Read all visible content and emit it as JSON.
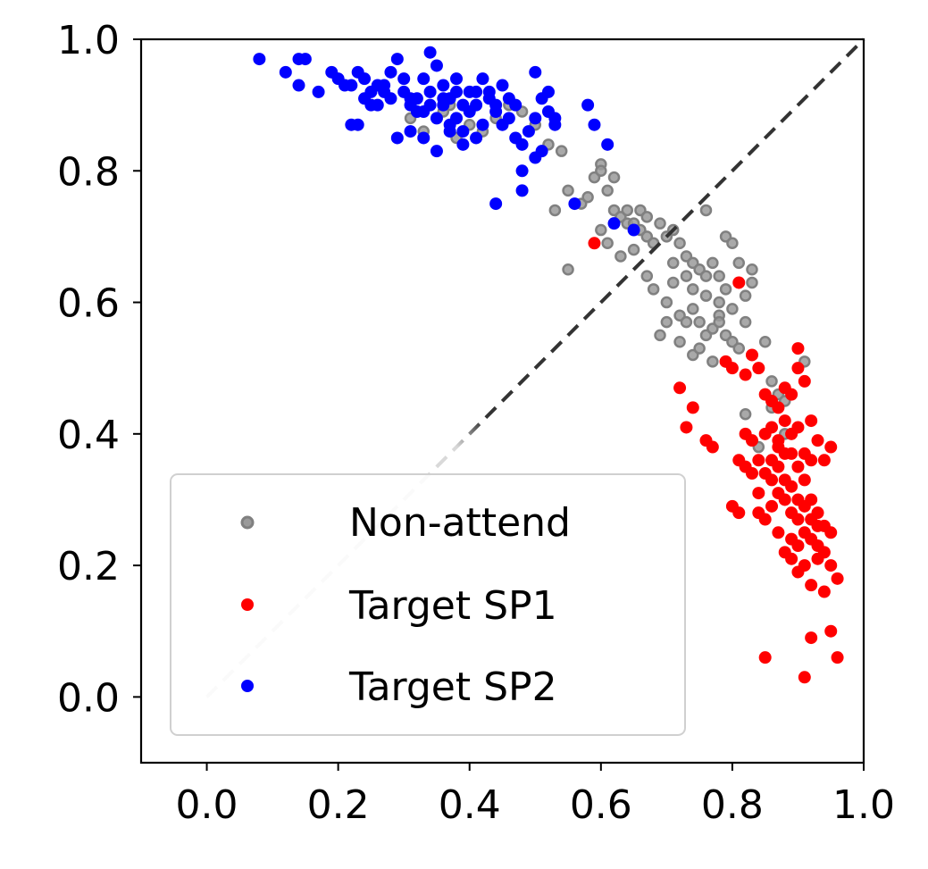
{
  "chart_data": {
    "type": "scatter",
    "title": "",
    "xlabel": "",
    "ylabel": "",
    "xlim": [
      -0.1,
      1.0
    ],
    "ylim": [
      -0.1,
      1.0
    ],
    "xticks": [
      "0.0",
      "0.2",
      "0.4",
      "0.6",
      "0.8",
      "1.0"
    ],
    "yticks": [
      "0.0",
      "0.2",
      "0.4",
      "0.6",
      "0.8",
      "1.0"
    ],
    "grid": false,
    "legend_position": "lower-left",
    "reference_line": {
      "style": "dashed",
      "from": [
        0,
        0
      ],
      "to": [
        1,
        1
      ],
      "color_start": "#d9d9d9",
      "color_end": "#333333"
    },
    "series": [
      {
        "name": "Non-attend",
        "color": "#808080",
        "points": [
          [
            0.31,
            0.88
          ],
          [
            0.33,
            0.86
          ],
          [
            0.36,
            0.89
          ],
          [
            0.38,
            0.85
          ],
          [
            0.4,
            0.87
          ],
          [
            0.42,
            0.86
          ],
          [
            0.44,
            0.88
          ],
          [
            0.46,
            0.9
          ],
          [
            0.48,
            0.89
          ],
          [
            0.5,
            0.87
          ],
          [
            0.52,
            0.84
          ],
          [
            0.54,
            0.83
          ],
          [
            0.37,
            0.9
          ],
          [
            0.34,
            0.92
          ],
          [
            0.53,
            0.74
          ],
          [
            0.55,
            0.77
          ],
          [
            0.57,
            0.75
          ],
          [
            0.58,
            0.76
          ],
          [
            0.59,
            0.79
          ],
          [
            0.6,
            0.81
          ],
          [
            0.6,
            0.8
          ],
          [
            0.61,
            0.77
          ],
          [
            0.62,
            0.79
          ],
          [
            0.62,
            0.74
          ],
          [
            0.63,
            0.73
          ],
          [
            0.64,
            0.72
          ],
          [
            0.64,
            0.74
          ],
          [
            0.65,
            0.72
          ],
          [
            0.66,
            0.71
          ],
          [
            0.67,
            0.7
          ],
          [
            0.68,
            0.69
          ],
          [
            0.69,
            0.72
          ],
          [
            0.7,
            0.7
          ],
          [
            0.71,
            0.71
          ],
          [
            0.72,
            0.69
          ],
          [
            0.73,
            0.67
          ],
          [
            0.74,
            0.66
          ],
          [
            0.75,
            0.65
          ],
          [
            0.76,
            0.64
          ],
          [
            0.76,
            0.74
          ],
          [
            0.77,
            0.66
          ],
          [
            0.78,
            0.64
          ],
          [
            0.79,
            0.7
          ],
          [
            0.8,
            0.69
          ],
          [
            0.81,
            0.66
          ],
          [
            0.83,
            0.65
          ],
          [
            0.55,
            0.65
          ],
          [
            0.6,
            0.71
          ],
          [
            0.61,
            0.69
          ],
          [
            0.63,
            0.67
          ],
          [
            0.65,
            0.68
          ],
          [
            0.67,
            0.64
          ],
          [
            0.68,
            0.62
          ],
          [
            0.7,
            0.6
          ],
          [
            0.71,
            0.63
          ],
          [
            0.72,
            0.58
          ],
          [
            0.73,
            0.57
          ],
          [
            0.74,
            0.59
          ],
          [
            0.75,
            0.57
          ],
          [
            0.76,
            0.55
          ],
          [
            0.77,
            0.56
          ],
          [
            0.78,
            0.58
          ],
          [
            0.79,
            0.55
          ],
          [
            0.8,
            0.54
          ],
          [
            0.81,
            0.53
          ],
          [
            0.82,
            0.57
          ],
          [
            0.83,
            0.52
          ],
          [
            0.84,
            0.5
          ],
          [
            0.85,
            0.54
          ],
          [
            0.86,
            0.48
          ],
          [
            0.87,
            0.46
          ],
          [
            0.88,
            0.45
          ],
          [
            0.82,
            0.43
          ],
          [
            0.84,
            0.38
          ],
          [
            0.69,
            0.55
          ],
          [
            0.7,
            0.57
          ],
          [
            0.72,
            0.54
          ],
          [
            0.74,
            0.52
          ],
          [
            0.75,
            0.53
          ],
          [
            0.77,
            0.51
          ],
          [
            0.78,
            0.6
          ],
          [
            0.79,
            0.62
          ],
          [
            0.8,
            0.59
          ],
          [
            0.82,
            0.61
          ],
          [
            0.83,
            0.63
          ],
          [
            0.76,
            0.61
          ],
          [
            0.78,
            0.57
          ],
          [
            0.74,
            0.62
          ],
          [
            0.73,
            0.64
          ],
          [
            0.91,
            0.51
          ],
          [
            0.86,
            0.44
          ],
          [
            0.88,
            0.4
          ],
          [
            0.71,
            0.66
          ],
          [
            0.66,
            0.74
          ],
          [
            0.67,
            0.73
          ]
        ]
      },
      {
        "name": "Target SP1",
        "color": "#ff0000",
        "points": [
          [
            0.59,
            0.69
          ],
          [
            0.81,
            0.63
          ],
          [
            0.72,
            0.47
          ],
          [
            0.74,
            0.44
          ],
          [
            0.73,
            0.41
          ],
          [
            0.76,
            0.39
          ],
          [
            0.77,
            0.38
          ],
          [
            0.79,
            0.51
          ],
          [
            0.8,
            0.5
          ],
          [
            0.82,
            0.49
          ],
          [
            0.83,
            0.52
          ],
          [
            0.84,
            0.5
          ],
          [
            0.85,
            0.46
          ],
          [
            0.86,
            0.45
          ],
          [
            0.87,
            0.44
          ],
          [
            0.88,
            0.47
          ],
          [
            0.89,
            0.46
          ],
          [
            0.9,
            0.53
          ],
          [
            0.9,
            0.5
          ],
          [
            0.91,
            0.48
          ],
          [
            0.92,
            0.42
          ],
          [
            0.93,
            0.39
          ],
          [
            0.94,
            0.36
          ],
          [
            0.95,
            0.38
          ],
          [
            0.82,
            0.4
          ],
          [
            0.83,
            0.39
          ],
          [
            0.84,
            0.36
          ],
          [
            0.85,
            0.34
          ],
          [
            0.86,
            0.33
          ],
          [
            0.87,
            0.31
          ],
          [
            0.88,
            0.3
          ],
          [
            0.89,
            0.28
          ],
          [
            0.9,
            0.27
          ],
          [
            0.91,
            0.25
          ],
          [
            0.92,
            0.24
          ],
          [
            0.93,
            0.23
          ],
          [
            0.94,
            0.22
          ],
          [
            0.95,
            0.2
          ],
          [
            0.96,
            0.18
          ],
          [
            0.88,
            0.42
          ],
          [
            0.86,
            0.41
          ],
          [
            0.85,
            0.4
          ],
          [
            0.87,
            0.38
          ],
          [
            0.89,
            0.37
          ],
          [
            0.9,
            0.35
          ],
          [
            0.91,
            0.33
          ],
          [
            0.92,
            0.3
          ],
          [
            0.93,
            0.28
          ],
          [
            0.94,
            0.26
          ],
          [
            0.95,
            0.25
          ],
          [
            0.84,
            0.28
          ],
          [
            0.85,
            0.27
          ],
          [
            0.81,
            0.28
          ],
          [
            0.8,
            0.29
          ],
          [
            0.88,
            0.22
          ],
          [
            0.89,
            0.21
          ],
          [
            0.9,
            0.19
          ],
          [
            0.91,
            0.2
          ],
          [
            0.92,
            0.17
          ],
          [
            0.94,
            0.16
          ],
          [
            0.93,
            0.21
          ],
          [
            0.95,
            0.1
          ],
          [
            0.96,
            0.06
          ],
          [
            0.92,
            0.09
          ],
          [
            0.91,
            0.03
          ],
          [
            0.85,
            0.06
          ],
          [
            0.83,
            0.34
          ],
          [
            0.84,
            0.31
          ],
          [
            0.86,
            0.36
          ],
          [
            0.87,
            0.35
          ],
          [
            0.88,
            0.33
          ],
          [
            0.89,
            0.32
          ],
          [
            0.9,
            0.3
          ],
          [
            0.91,
            0.29
          ],
          [
            0.92,
            0.27
          ],
          [
            0.93,
            0.26
          ],
          [
            0.89,
            0.24
          ],
          [
            0.9,
            0.23
          ],
          [
            0.87,
            0.39
          ],
          [
            0.88,
            0.37
          ],
          [
            0.89,
            0.4
          ],
          [
            0.9,
            0.41
          ],
          [
            0.91,
            0.37
          ],
          [
            0.92,
            0.36
          ],
          [
            0.81,
            0.36
          ],
          [
            0.82,
            0.35
          ],
          [
            0.86,
            0.29
          ],
          [
            0.87,
            0.25
          ]
        ]
      },
      {
        "name": "Target SP2",
        "color": "#0000ff",
        "points": [
          [
            0.08,
            0.97
          ],
          [
            0.12,
            0.95
          ],
          [
            0.14,
            0.97
          ],
          [
            0.15,
            0.97
          ],
          [
            0.14,
            0.93
          ],
          [
            0.17,
            0.92
          ],
          [
            0.19,
            0.95
          ],
          [
            0.2,
            0.94
          ],
          [
            0.22,
            0.93
          ],
          [
            0.23,
            0.95
          ],
          [
            0.24,
            0.94
          ],
          [
            0.25,
            0.92
          ],
          [
            0.26,
            0.9
          ],
          [
            0.27,
            0.93
          ],
          [
            0.28,
            0.95
          ],
          [
            0.29,
            0.97
          ],
          [
            0.3,
            0.92
          ],
          [
            0.31,
            0.9
          ],
          [
            0.32,
            0.89
          ],
          [
            0.33,
            0.94
          ],
          [
            0.34,
            0.98
          ],
          [
            0.35,
            0.96
          ],
          [
            0.36,
            0.93
          ],
          [
            0.37,
            0.91
          ],
          [
            0.38,
            0.88
          ],
          [
            0.39,
            0.86
          ],
          [
            0.4,
            0.92
          ],
          [
            0.41,
            0.9
          ],
          [
            0.42,
            0.94
          ],
          [
            0.43,
            0.91
          ],
          [
            0.44,
            0.89
          ],
          [
            0.45,
            0.87
          ],
          [
            0.46,
            0.91
          ],
          [
            0.47,
            0.85
          ],
          [
            0.48,
            0.84
          ],
          [
            0.49,
            0.86
          ],
          [
            0.5,
            0.88
          ],
          [
            0.51,
            0.91
          ],
          [
            0.52,
            0.89
          ],
          [
            0.53,
            0.87
          ],
          [
            0.22,
            0.87
          ],
          [
            0.23,
            0.87
          ],
          [
            0.25,
            0.9
          ],
          [
            0.29,
            0.85
          ],
          [
            0.31,
            0.86
          ],
          [
            0.33,
            0.85
          ],
          [
            0.35,
            0.83
          ],
          [
            0.37,
            0.86
          ],
          [
            0.39,
            0.84
          ],
          [
            0.41,
            0.85
          ],
          [
            0.48,
            0.8
          ],
          [
            0.48,
            0.77
          ],
          [
            0.5,
            0.82
          ],
          [
            0.51,
            0.83
          ],
          [
            0.44,
            0.75
          ],
          [
            0.56,
            0.75
          ],
          [
            0.58,
            0.9
          ],
          [
            0.59,
            0.87
          ],
          [
            0.61,
            0.84
          ],
          [
            0.62,
            0.72
          ],
          [
            0.65,
            0.71
          ],
          [
            0.5,
            0.95
          ],
          [
            0.34,
            0.92
          ],
          [
            0.32,
            0.91
          ],
          [
            0.36,
            0.9
          ],
          [
            0.38,
            0.92
          ],
          [
            0.3,
            0.94
          ],
          [
            0.28,
            0.91
          ],
          [
            0.26,
            0.93
          ],
          [
            0.35,
            0.88
          ],
          [
            0.37,
            0.87
          ],
          [
            0.4,
            0.89
          ],
          [
            0.42,
            0.87
          ],
          [
            0.44,
            0.9
          ],
          [
            0.46,
            0.88
          ],
          [
            0.43,
            0.92
          ],
          [
            0.45,
            0.93
          ],
          [
            0.39,
            0.9
          ],
          [
            0.33,
            0.89
          ],
          [
            0.31,
            0.91
          ],
          [
            0.27,
            0.92
          ],
          [
            0.24,
            0.91
          ],
          [
            0.21,
            0.93
          ],
          [
            0.52,
            0.92
          ],
          [
            0.53,
            0.88
          ],
          [
            0.36,
            0.91
          ],
          [
            0.34,
            0.9
          ],
          [
            0.38,
            0.94
          ],
          [
            0.41,
            0.92
          ],
          [
            0.47,
            0.9
          ]
        ]
      }
    ]
  }
}
